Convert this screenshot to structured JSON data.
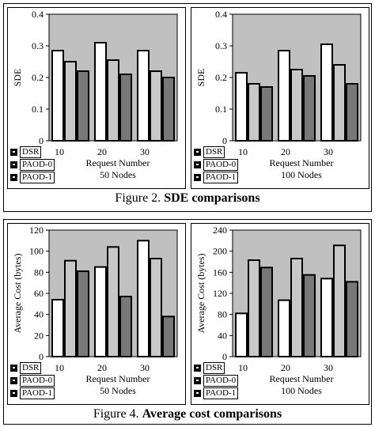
{
  "figures": [
    {
      "caption_prefix": "Figure 2.",
      "caption_title": "SDE comparisons"
    },
    {
      "caption_prefix": "Figure 4.",
      "caption_title": "Average cost comparisons"
    }
  ],
  "legend": [
    "DSR",
    "PAOD-0",
    "PAOD-1"
  ],
  "colors": {
    "plot_bg": "#c0c0c0",
    "DSR": "#ffffff",
    "PAOD-0": "#c8c8c8",
    "PAOD-1": "#787878"
  },
  "chart_data": [
    {
      "type": "bar",
      "categories": [
        "10",
        "20",
        "30"
      ],
      "series": [
        {
          "name": "DSR",
          "values": [
            0.285,
            0.31,
            0.285
          ]
        },
        {
          "name": "PAOD-0",
          "values": [
            0.25,
            0.255,
            0.22
          ]
        },
        {
          "name": "PAOD-1",
          "values": [
            0.22,
            0.21,
            0.2
          ]
        }
      ],
      "ylabel": "SDE",
      "xlabel": "Request Number",
      "subtitle": "50 Nodes",
      "ylim": [
        0,
        0.4
      ],
      "yticks": [
        "0",
        "0.1",
        "0.2",
        "0.3",
        "0.4"
      ],
      "grid": false
    },
    {
      "type": "bar",
      "categories": [
        "10",
        "20",
        "30"
      ],
      "series": [
        {
          "name": "DSR",
          "values": [
            0.215,
            0.285,
            0.305
          ]
        },
        {
          "name": "PAOD-0",
          "values": [
            0.18,
            0.225,
            0.24
          ]
        },
        {
          "name": "PAOD-1",
          "values": [
            0.17,
            0.205,
            0.18
          ]
        }
      ],
      "ylabel": "SDE",
      "xlabel": "Request Number",
      "subtitle": "100 Nodes",
      "ylim": [
        0,
        0.4
      ],
      "yticks": [
        "0",
        "0.1",
        "0.2",
        "0.3",
        "0.4"
      ],
      "grid": false
    },
    {
      "type": "bar",
      "categories": [
        "10",
        "20",
        "30"
      ],
      "series": [
        {
          "name": "DSR",
          "values": [
            54,
            85,
            110
          ]
        },
        {
          "name": "PAOD-0",
          "values": [
            91,
            104,
            93
          ]
        },
        {
          "name": "PAOD-1",
          "values": [
            81,
            57,
            38
          ]
        }
      ],
      "ylabel": "Average Cost (bytes)",
      "xlabel": "Request Number",
      "subtitle": "50 Nodes",
      "ylim": [
        0,
        120
      ],
      "yticks": [
        "0",
        "20",
        "40",
        "60",
        "80",
        "100",
        "120"
      ],
      "grid": false
    },
    {
      "type": "bar",
      "categories": [
        "10",
        "20",
        "30"
      ],
      "series": [
        {
          "name": "DSR",
          "values": [
            82,
            107,
            148
          ]
        },
        {
          "name": "PAOD-0",
          "values": [
            183,
            186,
            211
          ]
        },
        {
          "name": "PAOD-1",
          "values": [
            169,
            155,
            142
          ]
        }
      ],
      "ylabel": "Average Cost (bytes)",
      "xlabel": "Request Number",
      "subtitle": "100 Nodes",
      "ylim": [
        0,
        240
      ],
      "yticks": [
        "0",
        "40",
        "80",
        "120",
        "160",
        "200",
        "240"
      ],
      "grid": false
    }
  ]
}
